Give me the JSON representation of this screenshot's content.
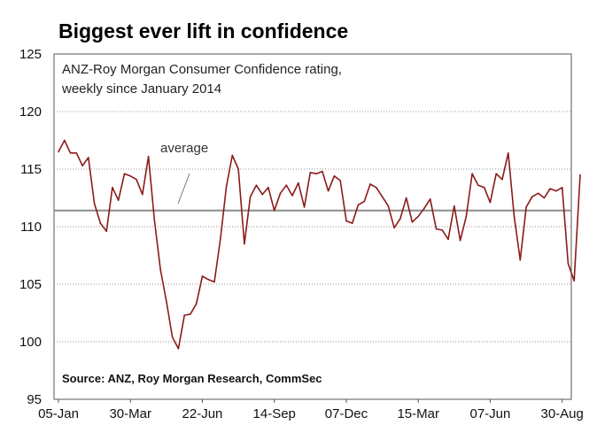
{
  "chart_data": {
    "type": "line",
    "title": "Biggest ever lift in confidence",
    "subtitle_lines": [
      "ANZ-Roy Morgan Consumer Confidence rating,",
      "weekly since January 2014"
    ],
    "source": "Source: ANZ, Roy Morgan Research, CommSec",
    "average_label": "average",
    "average_value": 111.4,
    "ylim": [
      95,
      125
    ],
    "yticks": [
      95,
      100,
      105,
      110,
      115,
      120,
      125
    ],
    "xtick_labels": [
      "05-Jan",
      "30-Mar",
      "22-Jun",
      "14-Sep",
      "07-Dec",
      "15-Mar",
      "07-Jun",
      "30-Aug"
    ],
    "weeks_per_xtick": 12,
    "grid": true,
    "line_color": "#8b1a1a",
    "series": [
      {
        "values": [
          116.5,
          117.5,
          116.4,
          116.4,
          115.3,
          116.0,
          112.0,
          110.3,
          109.6,
          113.4,
          112.3,
          114.6,
          114.4,
          114.1,
          112.8,
          116.1,
          110.6,
          106.3,
          103.5,
          100.4,
          99.4,
          102.3,
          102.4,
          103.3,
          105.7,
          105.4,
          105.2,
          108.9,
          113.5,
          116.2,
          115.0,
          108.5,
          112.6,
          113.6,
          112.8,
          113.4,
          111.4,
          112.9,
          113.6,
          112.7,
          113.8,
          111.7,
          114.7,
          114.6,
          114.8,
          113.1,
          114.4,
          114.0,
          110.5,
          110.3,
          111.9,
          112.2,
          113.7,
          113.4,
          112.6,
          111.8,
          109.9,
          110.7,
          112.5,
          110.4,
          110.9,
          111.6,
          112.4,
          109.8,
          109.7,
          108.9,
          111.8,
          108.8,
          110.9,
          114.6,
          113.6,
          113.4,
          112.1,
          114.6,
          114.1,
          116.4,
          110.9,
          107.1,
          111.7,
          112.6,
          112.9,
          112.5,
          113.3,
          113.1,
          113.4,
          106.8,
          105.3,
          114.5
        ]
      }
    ]
  }
}
